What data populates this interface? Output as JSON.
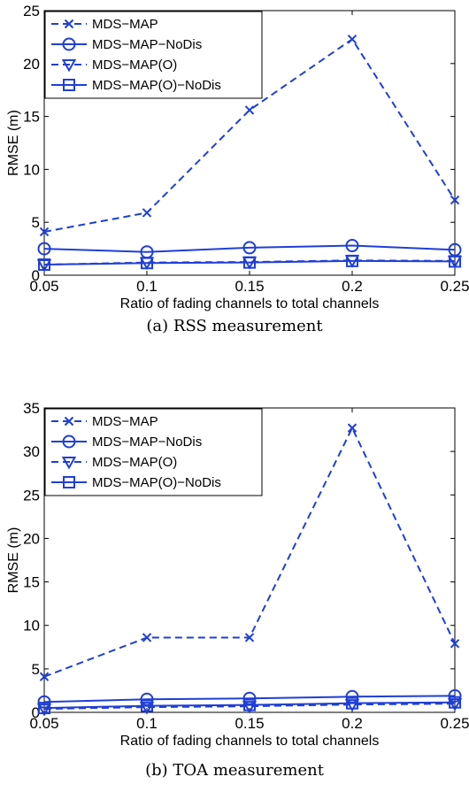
{
  "colors": {
    "series": "#1f3fd6",
    "axis": "#000000"
  },
  "chart_data": [
    {
      "type": "line",
      "caption": "(a) RSS measurement",
      "xlabel": "Ratio of fading channels to total channels",
      "ylabel": "RMSE (m)",
      "x": [
        0.05,
        0.1,
        0.15,
        0.2,
        0.25
      ],
      "xticks": [
        "0.05",
        "0.1",
        "0.15",
        "0.2",
        "0.25"
      ],
      "ylim": [
        0,
        25
      ],
      "yticks": [
        "0",
        "5",
        "10",
        "15",
        "20",
        "25"
      ],
      "legend_position": "top-left",
      "series": [
        {
          "name": "MDS−MAP",
          "marker": "x",
          "dash": "dashed",
          "values": [
            4.1,
            5.9,
            15.6,
            22.3,
            7.1
          ]
        },
        {
          "name": "MDS−MAP−NoDis",
          "marker": "circle",
          "dash": "solid",
          "values": [
            2.5,
            2.2,
            2.6,
            2.8,
            2.4
          ]
        },
        {
          "name": "MDS−MAP(O)",
          "marker": "triangle-down",
          "dash": "dashed",
          "values": [
            1.0,
            1.2,
            1.25,
            1.4,
            1.35
          ]
        },
        {
          "name": "MDS−MAP(O)−NoDis",
          "marker": "square",
          "dash": "solid",
          "values": [
            1.0,
            1.15,
            1.2,
            1.35,
            1.3
          ]
        }
      ]
    },
    {
      "type": "line",
      "caption": "(b) TOA measurement",
      "xlabel": "Ratio of fading channels to total channels",
      "ylabel": "RMSE (m)",
      "x": [
        0.05,
        0.1,
        0.15,
        0.2,
        0.25
      ],
      "xticks": [
        "0.05",
        "0.1",
        "0.15",
        "0.2",
        "0.25"
      ],
      "ylim": [
        0,
        35
      ],
      "yticks": [
        "0",
        "5",
        "10",
        "15",
        "20",
        "25",
        "30",
        "35"
      ],
      "legend_position": "top-left",
      "series": [
        {
          "name": "MDS−MAP",
          "marker": "x",
          "dash": "dashed",
          "values": [
            4.1,
            8.6,
            8.6,
            32.7,
            7.9
          ]
        },
        {
          "name": "MDS−MAP−NoDis",
          "marker": "circle",
          "dash": "solid",
          "values": [
            1.2,
            1.5,
            1.6,
            1.8,
            1.9
          ]
        },
        {
          "name": "MDS−MAP(O)",
          "marker": "triangle-down",
          "dash": "dashed",
          "values": [
            0.4,
            0.6,
            0.7,
            0.9,
            1.0
          ]
        },
        {
          "name": "MDS−MAP(O)−NoDis",
          "marker": "square",
          "dash": "solid",
          "values": [
            0.5,
            0.75,
            0.85,
            1.05,
            1.15
          ]
        }
      ]
    }
  ]
}
